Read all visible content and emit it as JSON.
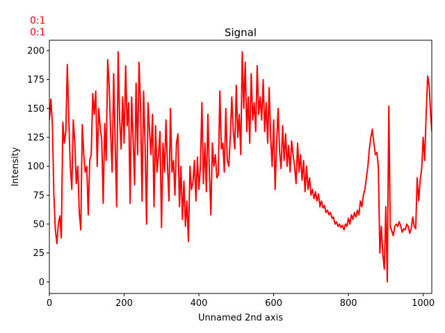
{
  "figure": {
    "corner_labels": [
      "0:1",
      "0:1"
    ],
    "corner_label_color": "#ff0000"
  },
  "chart_data": {
    "type": "line",
    "title": "Signal",
    "xlabel": "Unnamed 2nd axis",
    "ylabel": "Intensity",
    "xlim": [
      0,
      1023
    ],
    "ylim": [
      -10,
      209
    ],
    "xticks": [
      0,
      200,
      400,
      600,
      800,
      1000
    ],
    "yticks": [
      0,
      25,
      50,
      75,
      100,
      125,
      150,
      175,
      200
    ],
    "grid": false,
    "series": [
      {
        "color": "#ff0000",
        "x": [
          0,
          4,
          8,
          12,
          16,
          20,
          24,
          28,
          32,
          36,
          40,
          44,
          48,
          52,
          56,
          60,
          64,
          68,
          72,
          76,
          80,
          84,
          88,
          92,
          96,
          100,
          104,
          108,
          112,
          116,
          120,
          124,
          128,
          132,
          136,
          140,
          144,
          148,
          152,
          156,
          160,
          164,
          168,
          172,
          176,
          180,
          184,
          188,
          192,
          196,
          200,
          204,
          208,
          212,
          216,
          220,
          224,
          228,
          232,
          236,
          240,
          244,
          248,
          252,
          256,
          260,
          264,
          268,
          272,
          276,
          280,
          284,
          288,
          292,
          296,
          300,
          304,
          308,
          312,
          316,
          320,
          324,
          328,
          332,
          336,
          340,
          344,
          348,
          352,
          356,
          360,
          364,
          368,
          372,
          376,
          380,
          384,
          388,
          392,
          396,
          400,
          404,
          408,
          412,
          416,
          420,
          424,
          428,
          432,
          436,
          440,
          444,
          448,
          452,
          456,
          460,
          464,
          468,
          472,
          476,
          480,
          484,
          488,
          492,
          496,
          500,
          504,
          508,
          512,
          516,
          520,
          524,
          528,
          532,
          536,
          540,
          544,
          548,
          552,
          556,
          560,
          564,
          568,
          572,
          576,
          580,
          584,
          588,
          592,
          596,
          600,
          604,
          608,
          612,
          616,
          620,
          624,
          628,
          632,
          636,
          640,
          644,
          648,
          652,
          656,
          660,
          664,
          668,
          672,
          676,
          680,
          684,
          688,
          692,
          696,
          700,
          704,
          708,
          712,
          716,
          720,
          724,
          728,
          732,
          736,
          740,
          744,
          748,
          752,
          756,
          760,
          764,
          768,
          772,
          776,
          780,
          784,
          788,
          792,
          796,
          800,
          804,
          808,
          812,
          816,
          820,
          824,
          828,
          832,
          836,
          840,
          844,
          848,
          852,
          856,
          860,
          864,
          868,
          872,
          876,
          880,
          884,
          888,
          892,
          896,
          900,
          904,
          908,
          912,
          916,
          920,
          924,
          928,
          932,
          936,
          940,
          944,
          948,
          952,
          956,
          960,
          964,
          968,
          972,
          976,
          980,
          984,
          988,
          992,
          996,
          1000,
          1004,
          1008,
          1012,
          1016,
          1020,
          1023
        ],
        "y": [
          140,
          158,
          137,
          75,
          45,
          33,
          50,
          57,
          38,
          138,
          120,
          130,
          188,
          140,
          100,
          80,
          140,
          120,
          85,
          100,
          60,
          45,
          136,
          110,
          95,
          100,
          58,
          105,
          110,
          163,
          145,
          165,
          100,
          150,
          134,
          123,
          68,
          137,
          105,
          192,
          170,
          128,
          95,
          180,
          120,
          65,
          199,
          140,
          115,
          160,
          120,
          187,
          135,
          155,
          68,
          160,
          125,
          84,
          172,
          110,
          190,
          150,
          70,
          165,
          120,
          50,
          155,
          130,
          110,
          145,
          65,
          135,
          95,
          110,
          130,
          47,
          120,
          95,
          140,
          100,
          70,
          150,
          95,
          105,
          75,
          120,
          128,
          65,
          100,
          54,
          87,
          48,
          70,
          35,
          100,
          80,
          86,
          105,
          70,
          108,
          80,
          100,
          155,
          85,
          120,
          78,
          145,
          95,
          58,
          120,
          100,
          110,
          90,
          93,
          165,
          115,
          120,
          95,
          150,
          105,
          100,
          125,
          160,
          130,
          115,
          170,
          125,
          145,
          110,
          199,
          150,
          190,
          130,
          160,
          120,
          180,
          140,
          155,
          130,
          187,
          145,
          160,
          140,
          175,
          130,
          155,
          120,
          168,
          125,
          100,
          140,
          80,
          120,
          150,
          112,
          98,
          135,
          105,
          128,
          100,
          118,
          95,
          122,
          110,
          100,
          85,
          120,
          95,
          110,
          88,
          105,
          78,
          100,
          80,
          90,
          75,
          80,
          72,
          78,
          70,
          76,
          65,
          70,
          64,
          66,
          60,
          62,
          58,
          60,
          55,
          56,
          50,
          52,
          48,
          50,
          47,
          49,
          45,
          50,
          48,
          55,
          50,
          58,
          54,
          60,
          56,
          62,
          58,
          70,
          65,
          75,
          80,
          90,
          100,
          115,
          125,
          132,
          120,
          110,
          112,
          100,
          25,
          48,
          24,
          11,
          65,
          0,
          152,
          48,
          44,
          40,
          48,
          50,
          48,
          52,
          48,
          43,
          46,
          45,
          50,
          48,
          42,
          46,
          56,
          48,
          46,
          90,
          70,
          88,
          98,
          125,
          105,
          145,
          178,
          170,
          145,
          130
        ]
      }
    ]
  }
}
